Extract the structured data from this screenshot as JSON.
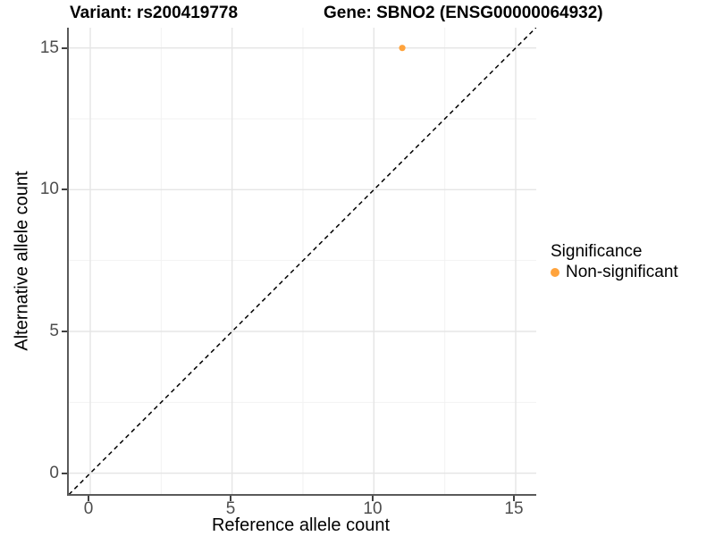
{
  "chart_data": {
    "type": "scatter",
    "titles": {
      "left": "Variant: rs200419778",
      "right": "Gene: SBNO2 (ENSG00000064932)"
    },
    "xlabel": "Reference allele count",
    "ylabel": "Alternative allele count",
    "x_ticks": [
      "0",
      "5",
      "10",
      "15"
    ],
    "y_ticks": [
      "0",
      "5",
      "10",
      "15"
    ],
    "xlim": [
      -0.75,
      15.75
    ],
    "ylim": [
      -0.75,
      15.75
    ],
    "grid": "major gridlines at ticks, minor gridlines at midpoints, light gray on white",
    "points": [
      {
        "x": 11,
        "y": 15,
        "series": "Non-significant"
      }
    ],
    "reference_line": {
      "kind": "identity y=x",
      "style": "dashed",
      "color": "#000000"
    },
    "legend": {
      "title": "Significance",
      "position": "right",
      "entries": [
        {
          "label": "Non-significant",
          "color": "#FFA33C"
        }
      ]
    },
    "colors": {
      "point": "#FFA33C",
      "axis_line": "#5A5A5A",
      "tick_mark": "#404040",
      "tick_text": "#4D4D4D",
      "grid_major": "#E5E5E5",
      "grid_minor": "#F2F2F2",
      "background": "#FFFFFF"
    }
  }
}
